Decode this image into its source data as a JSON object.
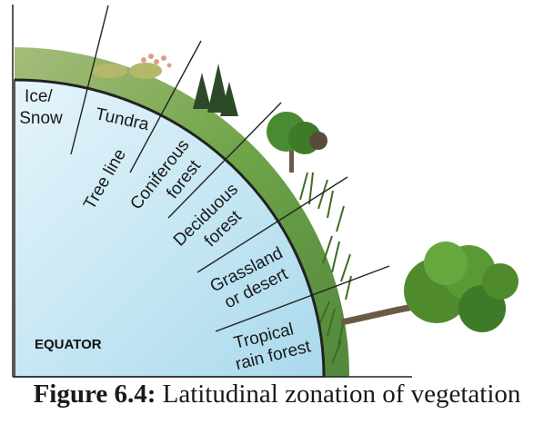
{
  "diagram": {
    "equator_label": "EQUATOR",
    "zones": [
      {
        "id": "ice-snow",
        "lines": [
          "Ice/",
          "Snow"
        ]
      },
      {
        "id": "tundra",
        "lines": [
          "Tundra"
        ]
      },
      {
        "id": "tree-line",
        "lines": [
          "Tree line"
        ]
      },
      {
        "id": "coniferous-forest",
        "lines": [
          "Coniferous",
          "forest"
        ]
      },
      {
        "id": "deciduous-forest",
        "lines": [
          "Deciduous",
          "forest"
        ]
      },
      {
        "id": "grassland-desert",
        "lines": [
          "Grassland",
          "or desert"
        ]
      },
      {
        "id": "tropical-rain-forest",
        "lines": [
          "Tropical",
          "rain forest"
        ]
      }
    ],
    "colors": {
      "globe_top": "#e6f5fb",
      "globe_bottom": "#a9d9ec",
      "vegetation": "#4f8a2c",
      "vegetation_dark": "#2f5e1b",
      "trunk": "#6b5a44"
    }
  },
  "caption": {
    "figure": "Figure 6.4:",
    "text": "Latitudinal zonation of vegetation"
  }
}
